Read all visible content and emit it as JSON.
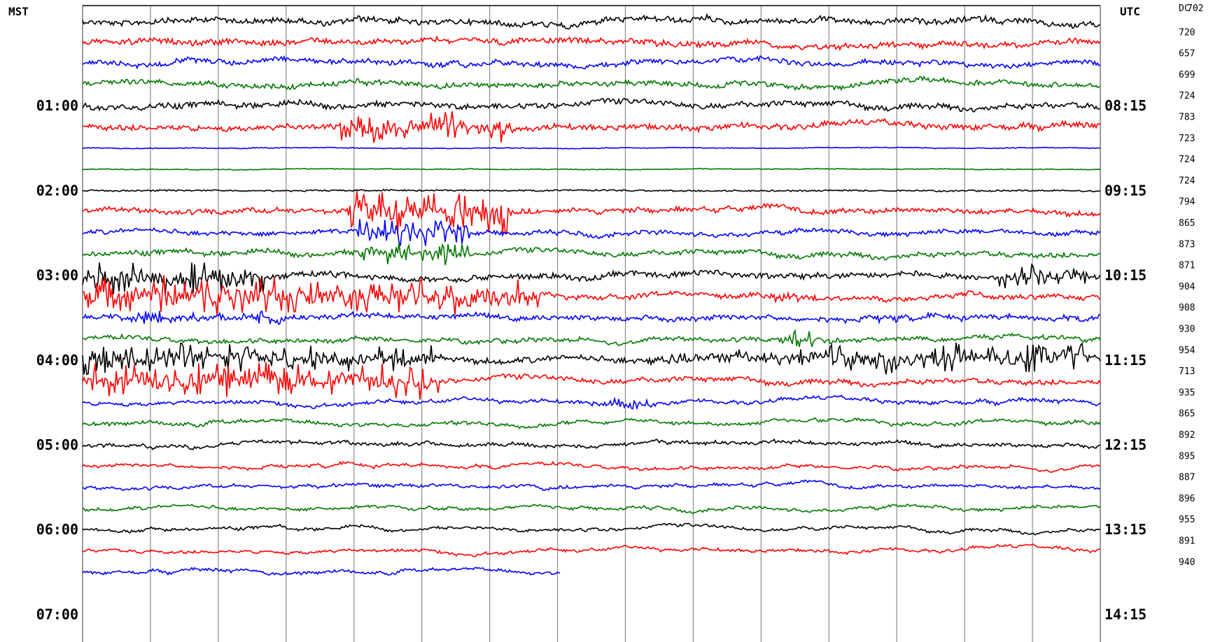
{
  "chart_data": {
    "type": "line",
    "left_zone_label": "MST",
    "right_zone_label": "UTC",
    "dc_header": "DC",
    "left_time_labels": [
      "01:00",
      "02:00",
      "03:00",
      "04:00",
      "05:00",
      "06:00",
      "07:00"
    ],
    "right_time_labels": [
      "08:15",
      "09:15",
      "10:15",
      "11:15",
      "12:15",
      "13:15",
      "14:15"
    ],
    "trace_colors": [
      "#000000",
      "#ff0000",
      "#0000ff",
      "#007700"
    ],
    "dc_offsets": [
      702,
      720,
      657,
      699,
      724,
      783,
      723,
      724,
      724,
      794,
      865,
      873,
      871,
      904,
      908,
      930,
      954,
      713,
      935,
      865,
      892,
      895,
      887,
      896,
      955,
      891,
      940
    ],
    "trace_count": 27,
    "traces_per_hour": 4,
    "vertical_gridlines": 15,
    "last_trace_end_fraction": 0.47,
    "grid": true
  }
}
